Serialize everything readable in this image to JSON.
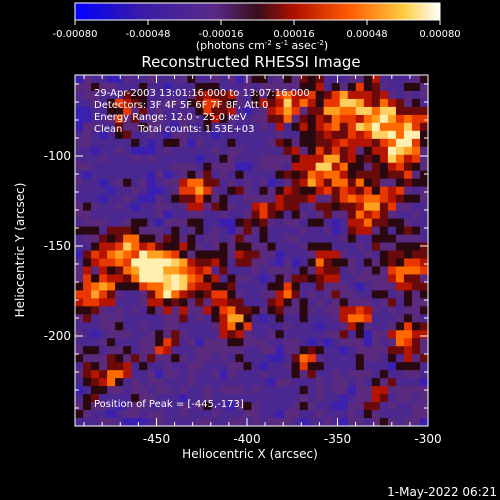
{
  "colorbar": {
    "ticks": [
      "-0.00080",
      "-0.00048",
      "-0.00016",
      "0.00016",
      "0.00048",
      "0.00080"
    ],
    "units_prefix": "(photons cm",
    "units_exp1": "-2",
    "units_mid": " s",
    "units_exp2": "-1",
    "units_mid2": " asec",
    "units_exp3": "-2",
    "units_suffix": ")"
  },
  "title": "Reconstructed RHESSI Image",
  "annotations": {
    "line1": "29-Apr-2003 13:01:16.000 to 13:07:16.000",
    "line2": "Detectors: 3F 4F 5F 6F 7F 8F, Att 0",
    "line3": "Energy Range: 12.0 - 25.0 keV",
    "line4": "Clean     Total counts: 1.53E+03",
    "peak": "Position of Peak = [-445,-173]"
  },
  "axes": {
    "xlabel": "Heliocentric X (arcsec)",
    "ylabel": "Heliocentric Y (arcsec)",
    "xticks": [
      "-450",
      "-400",
      "-350",
      "-300"
    ],
    "yticks": [
      "-100",
      "-150",
      "-200"
    ]
  },
  "footer": "1-May-2022 06:21",
  "colors": {
    "background": "#000000",
    "axes": "#ffffff"
  },
  "chart_data": {
    "type": "heatmap",
    "title": "Reconstructed RHESSI Image",
    "xlabel": "Heliocentric X (arcsec)",
    "ylabel": "Heliocentric Y (arcsec)",
    "xlim": [
      -495,
      -300
    ],
    "ylim": [
      -250,
      -55
    ],
    "colorbar_range": [
      -0.0008,
      0.0008
    ],
    "peak_position": [
      -445,
      -173
    ]
  }
}
